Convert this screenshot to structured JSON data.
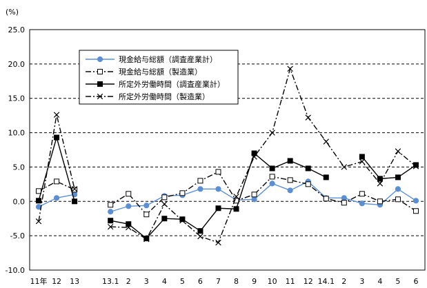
{
  "chart_data": {
    "type": "line",
    "unit_label": "(%)",
    "categories": [
      "11年",
      "12",
      "13",
      "",
      "13.1",
      "2",
      "3",
      "4",
      "5",
      "6",
      "7",
      "8",
      "9",
      "10",
      "11",
      "12",
      "14.1",
      "2",
      "3",
      "4",
      "5",
      "6"
    ],
    "y_ticks": [
      "25.0",
      "20.0",
      "15.0",
      "10.0",
      "5.0",
      "0.0",
      "-5.0",
      "-10.0"
    ],
    "ylim": [
      -10,
      25
    ],
    "grid": "dashed-horizontal",
    "legend_position": "top-left",
    "series": [
      {
        "name": "現金給与総額（調査産業計）",
        "color": "#5b8fd3",
        "marker": "circle",
        "dash": "solid",
        "values": [
          -0.8,
          0.5,
          1.0,
          null,
          -1.5,
          -0.7,
          -0.6,
          0.8,
          0.9,
          1.8,
          1.8,
          0.2,
          0.3,
          2.6,
          1.6,
          2.9,
          0.5,
          0.5,
          -0.3,
          -0.5,
          1.8,
          0.1
        ]
      },
      {
        "name": "現金給与総額（製造業）",
        "color": "#000000",
        "marker": "square-open",
        "dash": "dash-dot",
        "values": [
          1.5,
          2.9,
          1.7,
          null,
          -0.5,
          1.1,
          -1.9,
          0.6,
          1.2,
          3.0,
          4.3,
          0.1,
          1.0,
          3.6,
          3.1,
          2.5,
          0.4,
          -0.2,
          1.1,
          0.0,
          0.3,
          -1.4
        ]
      },
      {
        "name": "所定外労働時間（調査産業計）",
        "color": "#000000",
        "marker": "square-filled",
        "dash": "solid",
        "values": [
          0.1,
          9.3,
          0.0,
          null,
          -2.8,
          -3.3,
          -5.4,
          -2.5,
          -2.6,
          -4.3,
          -1.0,
          -1.1,
          7.0,
          4.8,
          5.9,
          4.8,
          3.5,
          null,
          6.5,
          3.3,
          3.5,
          5.3
        ]
      },
      {
        "name": "所定外労働時間（製造業）",
        "color": "#000000",
        "marker": "x",
        "dash": "dash-dot",
        "values": [
          -2.9,
          12.6,
          1.8,
          null,
          -3.7,
          -3.8,
          -5.5,
          -0.4,
          -2.8,
          -5.1,
          -6.0,
          0.7,
          6.5,
          10.0,
          19.3,
          12.2,
          8.7,
          5.0,
          5.8,
          2.6,
          7.3,
          5.1
        ]
      }
    ]
  }
}
